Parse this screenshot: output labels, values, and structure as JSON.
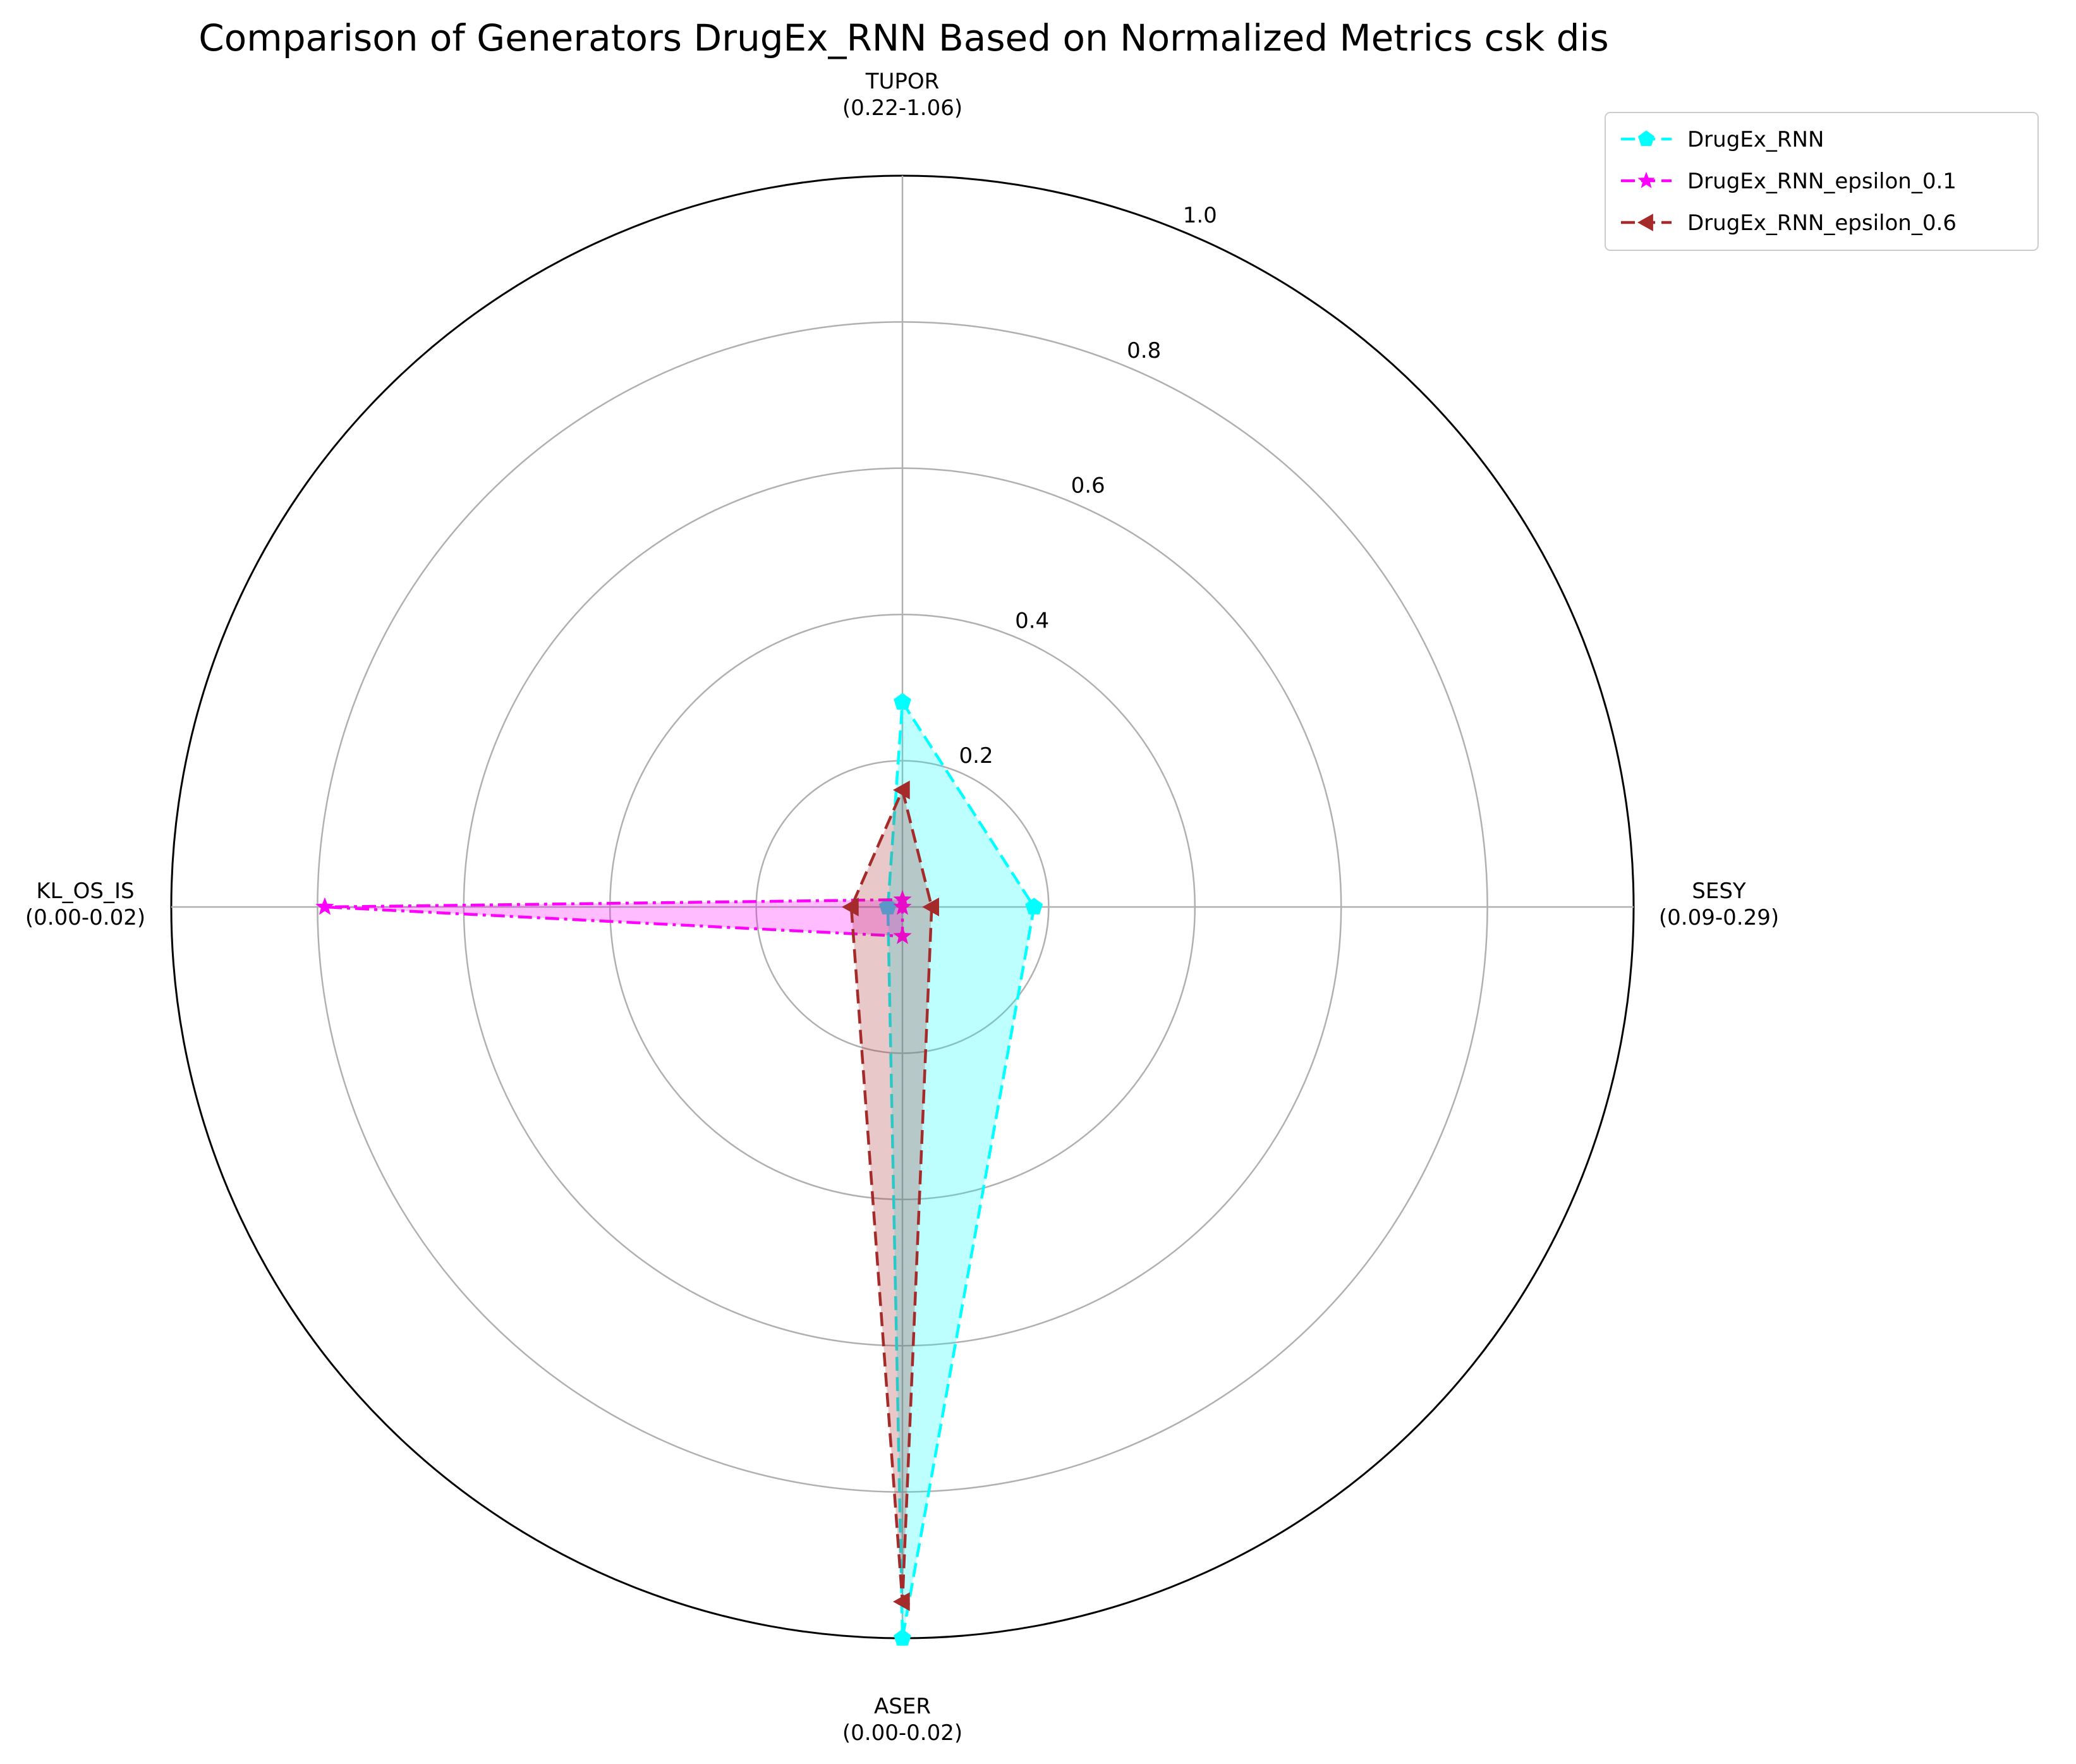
{
  "chart_data": {
    "type": "radar",
    "title": "Comparison of Generators DrugEx_RNN Based on Normalized Metrics csk dis",
    "axes": [
      {
        "name": "TUPOR",
        "range": "(0.22-1.06)"
      },
      {
        "name": "SESY",
        "range": "(0.09-0.29)"
      },
      {
        "name": "ASER",
        "range": "(0.00-0.02)"
      },
      {
        "name": "KL_OS_IS",
        "range": "(0.00-0.02)"
      }
    ],
    "rlim": [
      0,
      1.0
    ],
    "rticks": [
      0.2,
      0.4,
      0.6,
      0.8,
      1.0
    ],
    "rtick_labels": [
      "0.2",
      "0.4",
      "0.6",
      "0.8",
      "1.0"
    ],
    "grid": true,
    "legend_position": "top-right",
    "series": [
      {
        "name": "DrugEx_RNN",
        "values": [
          0.28,
          0.18,
          1.0,
          0.02
        ],
        "color": "#00ffff",
        "fill": "#00ffff",
        "marker": "pentagon",
        "linestyle": "dashed"
      },
      {
        "name": "DrugEx_RNN_epsilon_0.1",
        "values": [
          0.01,
          0.0,
          0.04,
          0.79
        ],
        "color": "#ff00ff",
        "fill": "#ff00ff",
        "marker": "star",
        "linestyle": "dashdot"
      },
      {
        "name": "DrugEx_RNN_epsilon_0.6",
        "values": [
          0.16,
          0.04,
          0.95,
          0.07
        ],
        "color": "#a52a2a",
        "fill": "#a52a2a",
        "marker": "triangle-left",
        "linestyle": "dashed"
      }
    ]
  }
}
